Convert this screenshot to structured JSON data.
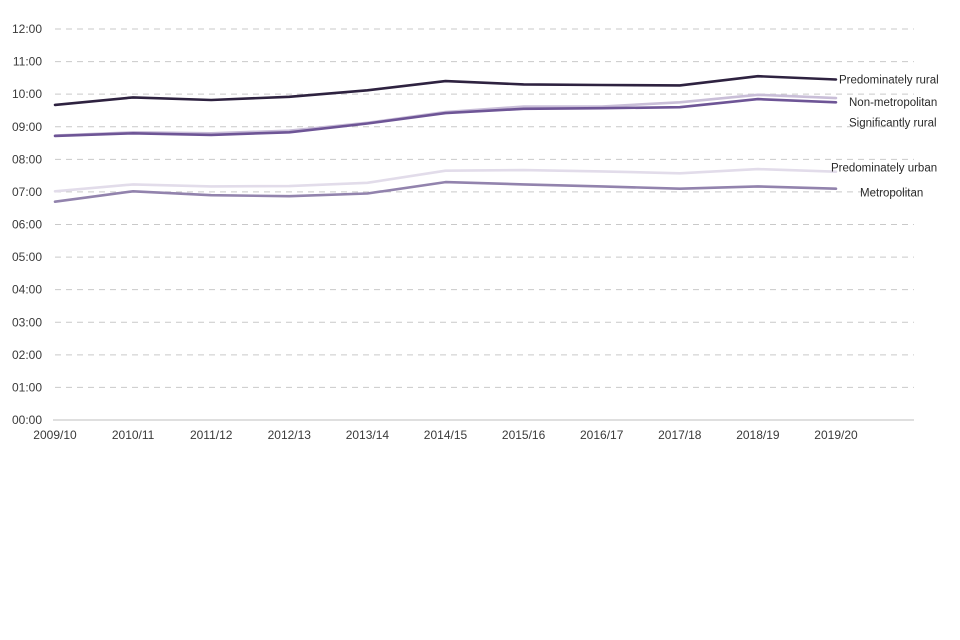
{
  "chart_data": {
    "type": "line",
    "title": "",
    "xlabel": "",
    "ylabel": "",
    "categories": [
      "2009/10",
      "2010/11",
      "2011/12",
      "2012/13",
      "2013/14",
      "2014/15",
      "2015/16",
      "2016/17",
      "2017/18",
      "2018/19",
      "2019/20"
    ],
    "y_ticks": [
      "00:00",
      "01:00",
      "02:00",
      "03:00",
      "04:00",
      "05:00",
      "06:00",
      "07:00",
      "08:00",
      "09:00",
      "10:00",
      "11:00",
      "12:00"
    ],
    "ylim_hours": [
      0,
      12
    ],
    "y_unit": "hours (hh:mm)",
    "grid": true,
    "legend": "direct labels at line ends (right)",
    "series": [
      {
        "name": "Predominately rural",
        "color": "#2e2240",
        "values_hours": [
          9.67,
          9.9,
          9.82,
          9.92,
          10.12,
          10.4,
          10.3,
          10.28,
          10.27,
          10.55,
          10.45
        ]
      },
      {
        "name": "Non-metropolitan",
        "color": "#c9bed8",
        "values_hours": [
          8.73,
          8.83,
          8.8,
          8.88,
          9.12,
          9.45,
          9.62,
          9.62,
          9.75,
          9.98,
          9.88
        ]
      },
      {
        "name": "Significantly rural",
        "color": "#6e5596",
        "values_hours": [
          8.72,
          8.8,
          8.75,
          8.83,
          9.1,
          9.42,
          9.55,
          9.57,
          9.6,
          9.85,
          9.75
        ]
      },
      {
        "name": "Predominately urban",
        "color": "#e2dcea",
        "values_hours": [
          7.02,
          7.23,
          7.17,
          7.18,
          7.28,
          7.65,
          7.67,
          7.63,
          7.57,
          7.7,
          7.62
        ]
      },
      {
        "name": "Metropolitan",
        "color": "#9283ad",
        "values_hours": [
          6.7,
          7.02,
          6.9,
          6.87,
          6.95,
          7.3,
          7.23,
          7.17,
          7.1,
          7.17,
          7.1
        ]
      }
    ]
  }
}
